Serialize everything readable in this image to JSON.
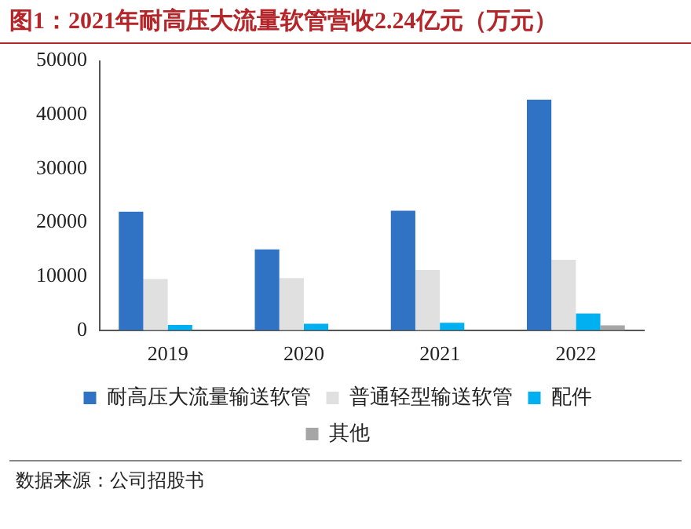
{
  "chart_data": {
    "type": "bar",
    "title": "图1：2021年耐高压大流量软管营收2.24亿元（万元）",
    "categories": [
      "2019",
      "2020",
      "2021",
      "2022"
    ],
    "series": [
      {
        "name": "耐高压大流量输送软管",
        "color": "#3073c4",
        "values": [
          22000,
          15000,
          22200,
          42800
        ]
      },
      {
        "name": "普通轻型输送软管",
        "color": "#e0e0e0",
        "values": [
          9500,
          9700,
          11200,
          13100
        ]
      },
      {
        "name": "配件",
        "color": "#00b0f0",
        "values": [
          1000,
          1200,
          1400,
          3100
        ]
      },
      {
        "name": "其他",
        "color": "#a6a6a6",
        "values": [
          null,
          null,
          null,
          900
        ]
      }
    ],
    "ylim": [
      0,
      50000
    ],
    "yticks": [
      0,
      10000,
      20000,
      30000,
      40000,
      50000
    ],
    "grid": false,
    "legend": "bottom",
    "annotations": [
      "数据来源：公司招股书"
    ]
  }
}
